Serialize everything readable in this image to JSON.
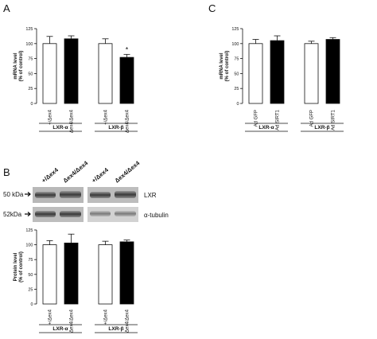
{
  "panels": {
    "A": {
      "letter": "A"
    },
    "B": {
      "letter": "B"
    },
    "C": {
      "letter": "C"
    }
  },
  "blot": {
    "lane_labels": [
      "+/Δex4",
      "Δex4/Δex4",
      "+/Δex4",
      "Δex4/Δex4"
    ],
    "rows": [
      {
        "mw": "50 kDa",
        "protein": "LXR"
      },
      {
        "mw": "52kDa",
        "protein": "α-tubulin"
      }
    ]
  },
  "chart_data": [
    {
      "id": "A",
      "type": "bar",
      "ylabel": "mRNA level\n(% of control)",
      "ylim": [
        0,
        125
      ],
      "yticks": [
        0,
        25,
        50,
        75,
        100,
        125
      ],
      "categories": [
        "+/Δex4",
        "Δex4/Δex4",
        "+/Δex4",
        "Δex4/Δex4"
      ],
      "groups": [
        {
          "label": "LXR-α",
          "members": [
            0,
            1
          ]
        },
        {
          "label": "LXR-β",
          "members": [
            2,
            3
          ]
        }
      ],
      "values": [
        100,
        108,
        100,
        77
      ],
      "errors": [
        12,
        5,
        8,
        5
      ],
      "fills": [
        "#ffffff",
        "#000000",
        "#ffffff",
        "#000000"
      ],
      "annotations": [
        {
          "bar": 3,
          "text": "*"
        }
      ]
    },
    {
      "id": "B",
      "type": "bar",
      "ylabel": "Protein level\n(% of control)",
      "ylim": [
        0,
        125
      ],
      "yticks": [
        0,
        25,
        50,
        75,
        100,
        125
      ],
      "categories": [
        "+/Δex4",
        "Δex4/Δex4",
        "+/Δex4",
        "Δex4/Δex4"
      ],
      "groups": [
        {
          "label": "LXR-α",
          "members": [
            0,
            1
          ]
        },
        {
          "label": "LXR-β",
          "members": [
            2,
            3
          ]
        }
      ],
      "values": [
        100,
        103,
        100,
        105
      ],
      "errors": [
        7,
        15,
        6,
        3
      ],
      "fills": [
        "#ffffff",
        "#000000",
        "#ffffff",
        "#000000"
      ],
      "annotations": []
    },
    {
      "id": "C",
      "type": "bar",
      "ylabel": "mRNA level\n(% of control)",
      "ylim": [
        0,
        125
      ],
      "yticks": [
        0,
        25,
        50,
        75,
        100,
        125
      ],
      "categories": [
        "Ad GFP",
        "Ad SIRT1",
        "Ad GFP",
        "Ad SIRT1"
      ],
      "groups": [
        {
          "label": "LXR-α",
          "members": [
            0,
            1
          ]
        },
        {
          "label": "LXR-β",
          "members": [
            2,
            3
          ]
        }
      ],
      "values": [
        100,
        105,
        100,
        107
      ],
      "errors": [
        7,
        8,
        4,
        3
      ],
      "fills": [
        "#ffffff",
        "#000000",
        "#ffffff",
        "#000000"
      ],
      "annotations": []
    }
  ]
}
